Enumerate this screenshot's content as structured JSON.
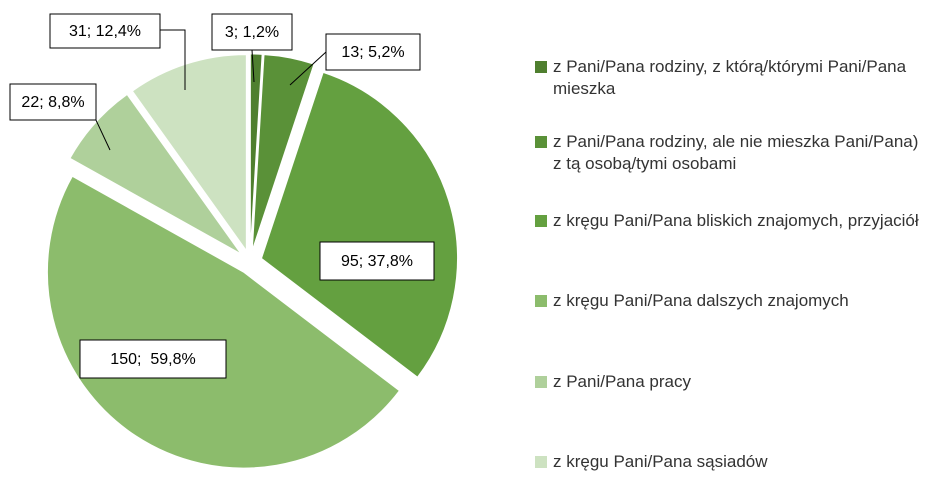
{
  "chart_data": {
    "type": "pie",
    "categories": [
      "z Pani/Pana rodziny, z którą/którymi Pani/Pana mieszka",
      "z Pani/Pana rodziny, ale nie mieszka Pani/Pana) z tą osobą/tymi osobami",
      "z kręgu Pani/Pana bliskich znajomych, przyjaciół",
      "z kręgu Pani/Pana dalszych znajomych",
      "z Pani/Pana pracy",
      "z kręgu Pani/Pana sąsiadów"
    ],
    "values": [
      3,
      13,
      95,
      150,
      22,
      31
    ],
    "value_labels": [
      "3; 1,2%",
      "13; 5,2%",
      "95; 37,8%",
      "150;  59,8%",
      "22; 8,8%",
      "31; 12,4%"
    ],
    "colors": [
      "#4f7f2f",
      "#5a9138",
      "#64a040",
      "#8cbc6c",
      "#afd09b",
      "#cde2c1"
    ],
    "legend": "right"
  }
}
